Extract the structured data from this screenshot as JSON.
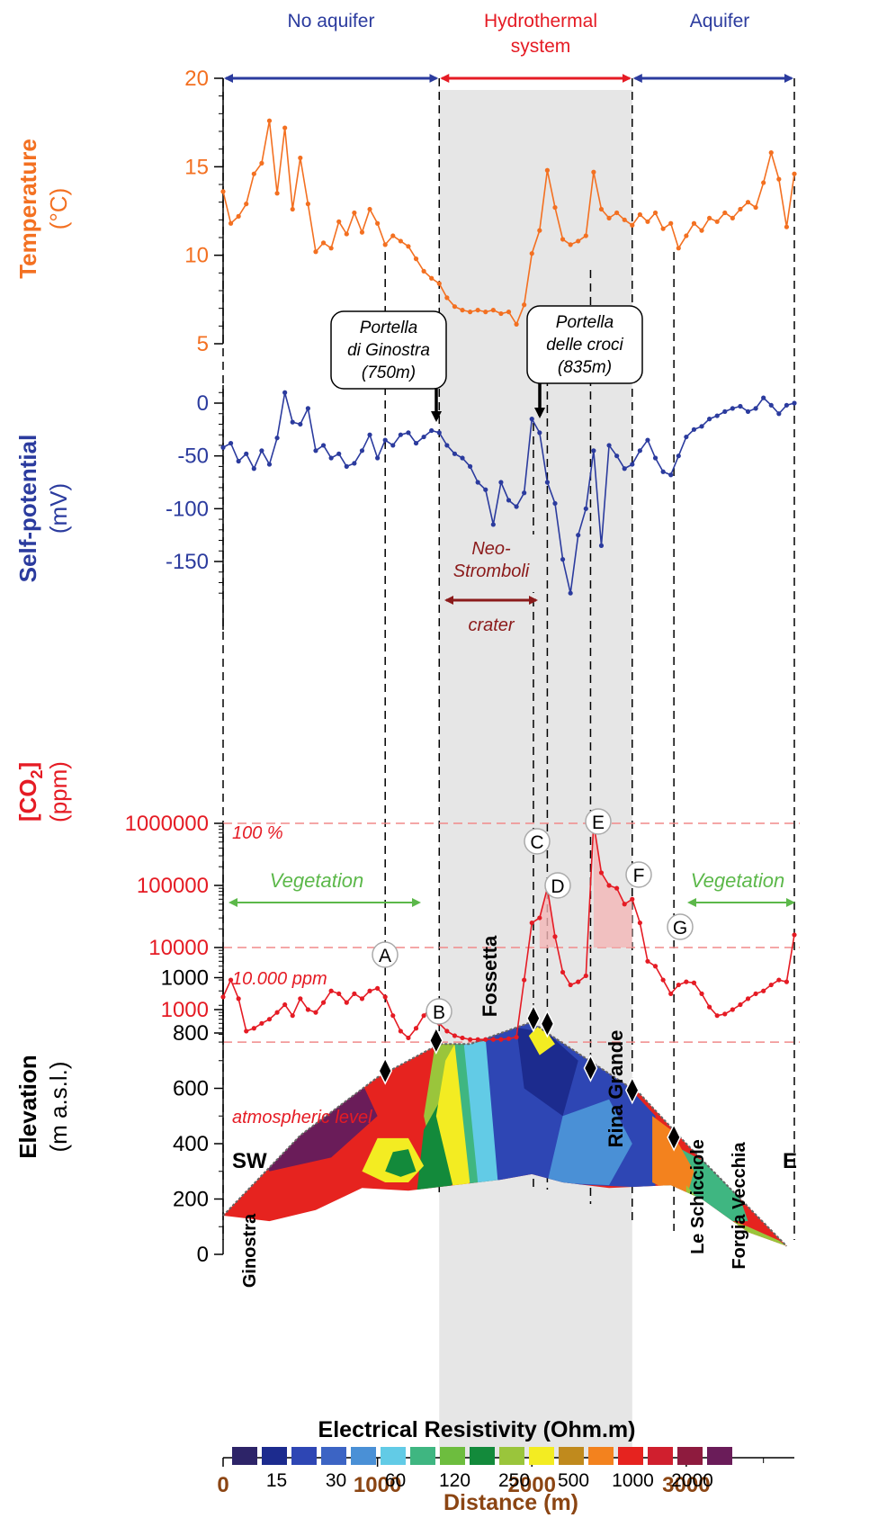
{
  "chart_data": {
    "type": "line",
    "x_range": [
      0,
      3700
    ],
    "x_ticks": [
      0,
      1000,
      2000,
      3000
    ],
    "xlabel": "Distance (m)",
    "top_labels": {
      "no_aquifer": "No aquifer",
      "hydrothermal_1": "Hydrothermal",
      "hydrothermal_2": "system",
      "aquifer": "Aquifer"
    },
    "zones": {
      "boundaries": [
        0,
        1400,
        2650,
        3700
      ]
    },
    "temperature": {
      "ylabel1": "Temperature",
      "ylabel2": "(°C)",
      "ylim": [
        5,
        20
      ],
      "ticks": [
        "5",
        "10",
        "15",
        "20"
      ],
      "x": [
        0,
        50,
        100,
        150,
        200,
        250,
        300,
        350,
        400,
        450,
        500,
        550,
        600,
        650,
        700,
        750,
        800,
        850,
        900,
        950,
        1000,
        1050,
        1100,
        1150,
        1200,
        1250,
        1300,
        1350,
        1400,
        1450,
        1500,
        1550,
        1600,
        1650,
        1700,
        1750,
        1800,
        1850,
        1900,
        1950,
        2000,
        2050,
        2100,
        2150,
        2200,
        2250,
        2300,
        2350,
        2400,
        2450,
        2500,
        2550,
        2600,
        2650,
        2700,
        2750,
        2800,
        2850,
        2900,
        2950,
        3000,
        3050,
        3100,
        3150,
        3200,
        3250,
        3300,
        3350,
        3400,
        3450,
        3500,
        3550,
        3600,
        3650,
        3700
      ],
      "values": [
        13.6,
        11.8,
        12.2,
        12.9,
        14.6,
        15.2,
        17.6,
        13.5,
        17.2,
        12.6,
        15.5,
        12.9,
        10.2,
        10.7,
        10.4,
        11.9,
        11.2,
        12.4,
        11.3,
        12.6,
        11.8,
        10.6,
        11.1,
        10.8,
        10.5,
        9.8,
        9.1,
        8.7,
        8.4,
        7.6,
        7.1,
        6.9,
        6.8,
        6.9,
        6.8,
        6.9,
        6.7,
        6.8,
        6.1,
        7.2,
        10.1,
        11.4,
        14.8,
        12.7,
        10.9,
        10.6,
        10.8,
        11.1,
        14.7,
        12.6,
        12.1,
        12.4,
        12.0,
        11.7,
        12.3,
        11.9,
        12.4,
        11.5,
        11.8,
        10.4,
        11.1,
        11.8,
        11.4,
        12.1,
        11.9,
        12.4,
        12.1,
        12.6,
        13.0,
        12.7,
        14.1,
        15.8,
        14.3,
        11.6,
        14.6
      ]
    },
    "self_potential": {
      "ylabel1": "Self-potential",
      "ylabel2": "(mV)",
      "ylim": [
        -185,
        12
      ],
      "ticks": [
        "0",
        "-50",
        "-100",
        "-150"
      ],
      "x": [
        0,
        50,
        100,
        150,
        200,
        250,
        300,
        350,
        400,
        450,
        500,
        550,
        600,
        650,
        700,
        750,
        800,
        850,
        900,
        950,
        1000,
        1050,
        1100,
        1150,
        1200,
        1250,
        1300,
        1350,
        1400,
        1450,
        1500,
        1550,
        1600,
        1650,
        1700,
        1750,
        1800,
        1850,
        1900,
        1950,
        2000,
        2050,
        2100,
        2150,
        2200,
        2250,
        2300,
        2350,
        2400,
        2450,
        2500,
        2550,
        2600,
        2650,
        2700,
        2750,
        2800,
        2850,
        2900,
        2950,
        3000,
        3050,
        3100,
        3150,
        3200,
        3250,
        3300,
        3350,
        3400,
        3450,
        3500,
        3550,
        3600,
        3650,
        3700
      ],
      "values": [
        -42,
        -38,
        -55,
        -48,
        -62,
        -45,
        -58,
        -33,
        10,
        -18,
        -20,
        -5,
        -45,
        -40,
        -52,
        -48,
        -60,
        -57,
        -45,
        -30,
        -52,
        -35,
        -40,
        -30,
        -28,
        -38,
        -32,
        -26,
        -28,
        -40,
        -48,
        -52,
        -60,
        -75,
        -82,
        -115,
        -75,
        -92,
        -98,
        -85,
        -15,
        -28,
        -75,
        -95,
        -148,
        -180,
        -125,
        -100,
        -45,
        -135,
        -40,
        -50,
        -62,
        -58,
        -45,
        -35,
        -52,
        -65,
        -68,
        -50,
        -32,
        -25,
        -22,
        -15,
        -12,
        -8,
        -5,
        -3,
        -8,
        -5,
        5,
        -2,
        -10,
        -2,
        0
      ]
    },
    "co2": {
      "ylabel1": "[CO",
      "ylabel_sub": "2",
      "ylabel1_end": "]",
      "ylabel2": "(ppm)",
      "scale": "log",
      "ylim": [
        300,
        1000000
      ],
      "ticks": [
        "1000",
        "10000",
        "100000",
        "1000000"
      ],
      "x": [
        0,
        50,
        100,
        150,
        200,
        250,
        300,
        350,
        400,
        450,
        500,
        550,
        600,
        650,
        700,
        750,
        800,
        850,
        900,
        950,
        1000,
        1050,
        1100,
        1150,
        1200,
        1250,
        1300,
        1350,
        1400,
        1450,
        1500,
        1550,
        1600,
        1650,
        1700,
        1750,
        1800,
        1850,
        1900,
        1950,
        2000,
        2050,
        2100,
        2150,
        2200,
        2250,
        2300,
        2350,
        2400,
        2450,
        2500,
        2550,
        2600,
        2650,
        2700,
        2750,
        2800,
        2850,
        2900,
        2950,
        3000,
        3050,
        3100,
        3150,
        3200,
        3250,
        3300,
        3350,
        3400,
        3450,
        3500,
        3550,
        3600,
        3650,
        3700
      ],
      "values": [
        1600,
        3000,
        1500,
        450,
        500,
        600,
        700,
        900,
        1200,
        800,
        1500,
        1000,
        900,
        1300,
        2000,
        1800,
        1300,
        1800,
        1500,
        2000,
        2200,
        1600,
        800,
        450,
        350,
        500,
        800,
        1100,
        600,
        450,
        380,
        350,
        330,
        330,
        330,
        330,
        330,
        340,
        360,
        3000,
        25000,
        30000,
        90000,
        15000,
        4000,
        2500,
        2800,
        3500,
        1000000,
        160000,
        100000,
        90000,
        50000,
        60000,
        25000,
        6000,
        5000,
        3000,
        1800,
        2500,
        2800,
        2700,
        1800,
        1100,
        800,
        850,
        1000,
        1200,
        1500,
        1800,
        2000,
        2500,
        3000,
        2800,
        16000
      ],
      "line_100": "100 %",
      "line_10000": "10.000 ppm",
      "line_atm": "atmospheric level",
      "vegetation_left": "Vegetation",
      "vegetation_right": "Vegetation",
      "fossetta": "Fossetta",
      "rina_grande": "Rina Grande"
    },
    "elevation": {
      "ylabel1": "Elevation",
      "ylabel2": "(m a.s.l.)",
      "ylim": [
        0,
        1000
      ],
      "ticks": [
        "0",
        "200",
        "400",
        "600",
        "800",
        "1000"
      ],
      "surface_x": [
        0,
        500,
        1000,
        1400,
        1600,
        2000,
        2100,
        2700,
        3000,
        3650
      ],
      "surface_y": [
        140,
        430,
        640,
        760,
        760,
        840,
        800,
        580,
        400,
        30
      ],
      "sw_label": "SW",
      "e_label": "E",
      "ginostra": "Ginostra",
      "le_schicciole": "Le Schicciole",
      "forgia_vecchia": "Forgia Vecchia"
    },
    "resistivity_legend": {
      "title": "Electrical Resistivity (Ohm.m)",
      "colors": [
        "#2d2468",
        "#1c2b8e",
        "#2e46b4",
        "#3c64c4",
        "#4a90d6",
        "#62cbe6",
        "#3fb681",
        "#6dbd3e",
        "#138a3b",
        "#9ac53b",
        "#f3ec22",
        "#c08a1d",
        "#f3821e",
        "#e6231f",
        "#d01f2e",
        "#8e1b3e",
        "#6a1c59"
      ],
      "labels": [
        "15",
        "30",
        "60",
        "120",
        "250",
        "500",
        "1000",
        "2000"
      ]
    },
    "callouts": {
      "ginostra_1": "Portella",
      "ginostra_2": "di Ginostra",
      "ginostra_3": "(750m)",
      "croci_1": "Portella",
      "croci_2": "delle croci",
      "croci_3": "(835m)",
      "neo_1": "Neo-",
      "neo_2": "Stromboli",
      "neo_3": "crater"
    },
    "station_letters": [
      "A",
      "B",
      "C",
      "D",
      "E",
      "F",
      "G"
    ]
  }
}
